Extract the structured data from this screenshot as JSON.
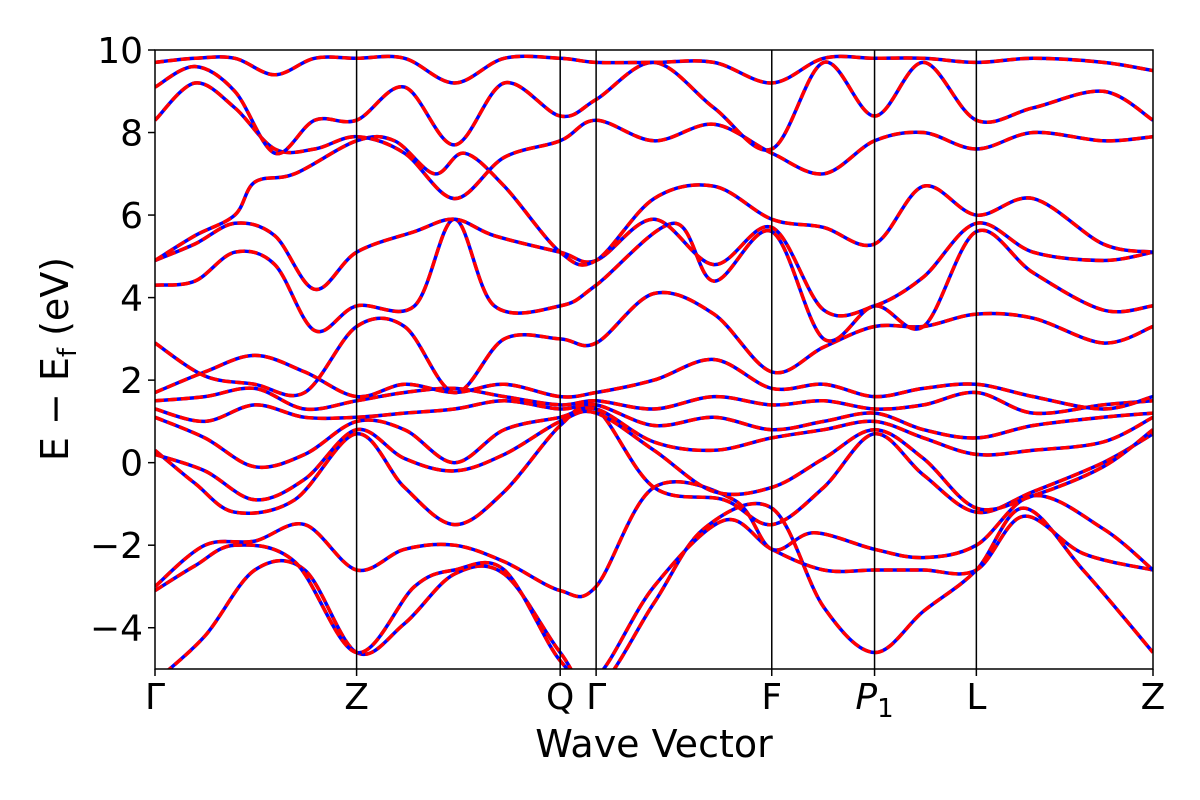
{
  "chart_data": {
    "type": "line",
    "title": "",
    "xlabel": "Wave Vector",
    "ylabel": {
      "main": "E − E",
      "sub": "f",
      "unit": " (eV)"
    },
    "ylim": [
      -5,
      10
    ],
    "yticks": [
      {
        "value": -4,
        "label": "−4"
      },
      {
        "value": -2,
        "label": "−2"
      },
      {
        "value": 0,
        "label": "0"
      },
      {
        "value": 2,
        "label": "2"
      },
      {
        "value": 4,
        "label": "4"
      },
      {
        "value": 6,
        "label": "6"
      },
      {
        "value": 8,
        "label": "8"
      },
      {
        "value": 10,
        "label": "10"
      }
    ],
    "xlim": [
      0,
      1
    ],
    "xticks": [
      {
        "pos": 0.0,
        "label": "Γ",
        "sub": ""
      },
      {
        "pos": 0.202,
        "label": "Z",
        "sub": ""
      },
      {
        "pos": 0.406,
        "label": "Q",
        "sub": ""
      },
      {
        "pos": 0.442,
        "label": "Γ",
        "sub": ""
      },
      {
        "pos": 0.618,
        "label": "F",
        "sub": ""
      },
      {
        "pos": 0.721,
        "label": "P",
        "sub": "1"
      },
      {
        "pos": 0.823,
        "label": "L",
        "sub": ""
      },
      {
        "pos": 1.0,
        "label": "Z",
        "sub": ""
      }
    ],
    "grid": false,
    "legend": "none",
    "series_styles": [
      {
        "color": "#0000ff",
        "style": "solid"
      },
      {
        "color": "#ff0000",
        "style": "dashed"
      }
    ],
    "bands": [
      [
        [
          0,
          -5.3
        ],
        [
          0.05,
          -4.2
        ],
        [
          0.1,
          -2.6
        ],
        [
          0.15,
          -2.6
        ],
        [
          0.202,
          -4.6
        ],
        [
          0.25,
          -3.9
        ],
        [
          0.3,
          -2.7
        ],
        [
          0.35,
          -2.7
        ],
        [
          0.406,
          -4.6
        ],
        [
          0.442,
          -5.5
        ],
        [
          0.5,
          -3.4
        ],
        [
          0.55,
          -1.6
        ],
        [
          0.618,
          -1.1
        ],
        [
          0.67,
          -3.5
        ],
        [
          0.721,
          -4.6
        ],
        [
          0.77,
          -3.6
        ],
        [
          0.823,
          -2.6
        ],
        [
          0.87,
          -1.1
        ],
        [
          0.93,
          -2.6
        ],
        [
          1.0,
          -4.6
        ]
      ],
      [
        [
          0,
          -3.1
        ],
        [
          0.04,
          -2.5
        ],
        [
          0.08,
          -2.0
        ],
        [
          0.14,
          -2.4
        ],
        [
          0.202,
          -4.6
        ],
        [
          0.26,
          -3.0
        ],
        [
          0.3,
          -2.6
        ],
        [
          0.35,
          -2.6
        ],
        [
          0.406,
          -4.8
        ],
        [
          0.442,
          -5.2
        ],
        [
          0.5,
          -3.0
        ],
        [
          0.57,
          -1.4
        ],
        [
          0.618,
          -2.1
        ],
        [
          0.67,
          -2.6
        ],
        [
          0.721,
          -2.6
        ],
        [
          0.77,
          -2.6
        ],
        [
          0.823,
          -2.6
        ],
        [
          0.87,
          -1.3
        ],
        [
          0.93,
          -2.2
        ],
        [
          1.0,
          -2.6
        ]
      ],
      [
        [
          0,
          -3.0
        ],
        [
          0.05,
          -2.0
        ],
        [
          0.1,
          -1.9
        ],
        [
          0.15,
          -1.5
        ],
        [
          0.202,
          -2.6
        ],
        [
          0.25,
          -2.1
        ],
        [
          0.3,
          -2.0
        ],
        [
          0.35,
          -2.4
        ],
        [
          0.406,
          -3.1
        ],
        [
          0.442,
          -3.0
        ],
        [
          0.5,
          -0.6
        ],
        [
          0.58,
          -0.9
        ],
        [
          0.618,
          -2.1
        ],
        [
          0.66,
          -1.7
        ],
        [
          0.721,
          -2.1
        ],
        [
          0.77,
          -2.3
        ],
        [
          0.823,
          -2.0
        ],
        [
          0.88,
          -0.8
        ],
        [
          0.95,
          -1.6
        ],
        [
          1.0,
          -2.6
        ]
      ],
      [
        [
          0,
          0.3
        ],
        [
          0.04,
          -0.5
        ],
        [
          0.08,
          -1.2
        ],
        [
          0.14,
          -0.9
        ],
        [
          0.202,
          0.7
        ],
        [
          0.25,
          -0.6
        ],
        [
          0.3,
          -1.5
        ],
        [
          0.35,
          -0.7
        ],
        [
          0.406,
          0.9
        ],
        [
          0.442,
          1.3
        ],
        [
          0.5,
          -0.6
        ],
        [
          0.57,
          -0.9
        ],
        [
          0.618,
          -1.5
        ],
        [
          0.67,
          -0.6
        ],
        [
          0.721,
          0.7
        ],
        [
          0.77,
          -0.3
        ],
        [
          0.823,
          -1.2
        ],
        [
          0.88,
          -0.7
        ],
        [
          0.95,
          0.0
        ],
        [
          1.0,
          0.7
        ]
      ],
      [
        [
          0,
          0.2
        ],
        [
          0.05,
          -0.2
        ],
        [
          0.1,
          -0.9
        ],
        [
          0.15,
          -0.4
        ],
        [
          0.202,
          0.8
        ],
        [
          0.25,
          0.1
        ],
        [
          0.3,
          -0.2
        ],
        [
          0.35,
          0.2
        ],
        [
          0.406,
          1.0
        ],
        [
          0.442,
          1.2
        ],
        [
          0.5,
          0.3
        ],
        [
          0.56,
          -0.7
        ],
        [
          0.618,
          -0.6
        ],
        [
          0.67,
          0.1
        ],
        [
          0.721,
          0.8
        ],
        [
          0.77,
          0.1
        ],
        [
          0.823,
          -1.1
        ],
        [
          0.88,
          -0.8
        ],
        [
          0.95,
          -0.1
        ],
        [
          1.0,
          0.8
        ]
      ],
      [
        [
          0,
          1.1
        ],
        [
          0.05,
          0.6
        ],
        [
          0.1,
          -0.1
        ],
        [
          0.15,
          0.2
        ],
        [
          0.202,
          1.0
        ],
        [
          0.25,
          0.8
        ],
        [
          0.3,
          0.0
        ],
        [
          0.35,
          0.8
        ],
        [
          0.406,
          1.1
        ],
        [
          0.442,
          1.3
        ],
        [
          0.5,
          0.5
        ],
        [
          0.56,
          0.3
        ],
        [
          0.618,
          0.6
        ],
        [
          0.67,
          0.8
        ],
        [
          0.721,
          1.0
        ],
        [
          0.77,
          0.6
        ],
        [
          0.823,
          0.2
        ],
        [
          0.88,
          0.3
        ],
        [
          0.95,
          0.5
        ],
        [
          1.0,
          1.1
        ]
      ],
      [
        [
          0,
          1.3
        ],
        [
          0.05,
          1.0
        ],
        [
          0.1,
          1.4
        ],
        [
          0.15,
          1.1
        ],
        [
          0.202,
          1.1
        ],
        [
          0.25,
          1.2
        ],
        [
          0.3,
          1.3
        ],
        [
          0.35,
          1.5
        ],
        [
          0.406,
          1.3
        ],
        [
          0.442,
          1.4
        ],
        [
          0.5,
          0.9
        ],
        [
          0.56,
          1.1
        ],
        [
          0.618,
          0.8
        ],
        [
          0.67,
          1.0
        ],
        [
          0.721,
          1.2
        ],
        [
          0.77,
          0.8
        ],
        [
          0.823,
          0.6
        ],
        [
          0.88,
          0.9
        ],
        [
          0.95,
          1.1
        ],
        [
          1.0,
          1.2
        ]
      ],
      [
        [
          0,
          1.5
        ],
        [
          0.05,
          1.6
        ],
        [
          0.1,
          1.8
        ],
        [
          0.15,
          1.3
        ],
        [
          0.202,
          1.5
        ],
        [
          0.25,
          1.7
        ],
        [
          0.3,
          1.8
        ],
        [
          0.35,
          1.6
        ],
        [
          0.406,
          1.4
        ],
        [
          0.442,
          1.5
        ],
        [
          0.5,
          1.3
        ],
        [
          0.56,
          1.6
        ],
        [
          0.618,
          1.4
        ],
        [
          0.67,
          1.5
        ],
        [
          0.721,
          1.3
        ],
        [
          0.77,
          1.4
        ],
        [
          0.823,
          1.7
        ],
        [
          0.88,
          1.2
        ],
        [
          0.95,
          1.4
        ],
        [
          1.0,
          1.5
        ]
      ],
      [
        [
          0,
          1.7
        ],
        [
          0.05,
          2.2
        ],
        [
          0.1,
          2.6
        ],
        [
          0.15,
          2.2
        ],
        [
          0.202,
          1.6
        ],
        [
          0.25,
          1.9
        ],
        [
          0.3,
          1.7
        ],
        [
          0.35,
          1.9
        ],
        [
          0.406,
          1.6
        ],
        [
          0.442,
          1.7
        ],
        [
          0.5,
          2.0
        ],
        [
          0.56,
          2.5
        ],
        [
          0.618,
          1.8
        ],
        [
          0.67,
          1.9
        ],
        [
          0.721,
          1.6
        ],
        [
          0.77,
          1.8
        ],
        [
          0.823,
          1.9
        ],
        [
          0.88,
          1.6
        ],
        [
          0.95,
          1.3
        ],
        [
          1.0,
          1.6
        ]
      ],
      [
        [
          0,
          2.9
        ],
        [
          0.05,
          2.1
        ],
        [
          0.1,
          1.9
        ],
        [
          0.15,
          1.7
        ],
        [
          0.202,
          3.3
        ],
        [
          0.25,
          3.3
        ],
        [
          0.3,
          1.7
        ],
        [
          0.35,
          3.0
        ],
        [
          0.406,
          3.0
        ],
        [
          0.442,
          2.9
        ],
        [
          0.5,
          4.1
        ],
        [
          0.56,
          3.6
        ],
        [
          0.618,
          2.2
        ],
        [
          0.67,
          2.8
        ],
        [
          0.721,
          3.3
        ],
        [
          0.77,
          3.3
        ],
        [
          0.823,
          3.6
        ],
        [
          0.88,
          3.5
        ],
        [
          0.95,
          2.9
        ],
        [
          1.0,
          3.3
        ]
      ],
      [
        [
          0,
          4.3
        ],
        [
          0.04,
          4.4
        ],
        [
          0.08,
          5.1
        ],
        [
          0.12,
          4.8
        ],
        [
          0.16,
          3.2
        ],
        [
          0.202,
          3.8
        ],
        [
          0.26,
          3.8
        ],
        [
          0.3,
          5.9
        ],
        [
          0.34,
          3.8
        ],
        [
          0.406,
          3.8
        ],
        [
          0.442,
          4.3
        ],
        [
          0.52,
          5.8
        ],
        [
          0.56,
          4.4
        ],
        [
          0.618,
          5.6
        ],
        [
          0.67,
          3.0
        ],
        [
          0.721,
          3.8
        ],
        [
          0.77,
          3.3
        ],
        [
          0.823,
          5.6
        ],
        [
          0.88,
          4.6
        ],
        [
          0.95,
          3.7
        ],
        [
          1.0,
          3.8
        ]
      ],
      [
        [
          0,
          4.9
        ],
        [
          0.04,
          5.3
        ],
        [
          0.08,
          5.8
        ],
        [
          0.12,
          5.5
        ],
        [
          0.16,
          4.2
        ],
        [
          0.202,
          5.1
        ],
        [
          0.26,
          5.6
        ],
        [
          0.3,
          5.9
        ],
        [
          0.34,
          5.5
        ],
        [
          0.406,
          5.1
        ],
        [
          0.442,
          4.9
        ],
        [
          0.5,
          5.9
        ],
        [
          0.56,
          4.8
        ],
        [
          0.618,
          5.7
        ],
        [
          0.67,
          3.7
        ],
        [
          0.721,
          3.8
        ],
        [
          0.77,
          4.5
        ],
        [
          0.823,
          5.8
        ],
        [
          0.88,
          5.1
        ],
        [
          0.95,
          4.9
        ],
        [
          1.0,
          5.1
        ]
      ],
      [
        [
          0,
          4.9
        ],
        [
          0.04,
          5.5
        ],
        [
          0.08,
          6.0
        ],
        [
          0.1,
          6.8
        ],
        [
          0.14,
          7.0
        ],
        [
          0.202,
          7.8
        ],
        [
          0.24,
          7.8
        ],
        [
          0.28,
          7.0
        ],
        [
          0.31,
          7.5
        ],
        [
          0.35,
          6.7
        ],
        [
          0.406,
          5.1
        ],
        [
          0.442,
          4.9
        ],
        [
          0.5,
          6.4
        ],
        [
          0.56,
          6.7
        ],
        [
          0.618,
          5.9
        ],
        [
          0.67,
          5.7
        ],
        [
          0.721,
          5.3
        ],
        [
          0.77,
          6.7
        ],
        [
          0.823,
          6.0
        ],
        [
          0.88,
          6.4
        ],
        [
          0.95,
          5.3
        ],
        [
          1.0,
          5.1
        ]
      ],
      [
        [
          0,
          8.3
        ],
        [
          0.04,
          9.2
        ],
        [
          0.08,
          8.6
        ],
        [
          0.12,
          7.6
        ],
        [
          0.16,
          7.6
        ],
        [
          0.202,
          7.9
        ],
        [
          0.25,
          7.5
        ],
        [
          0.3,
          6.4
        ],
        [
          0.35,
          7.4
        ],
        [
          0.406,
          7.8
        ],
        [
          0.442,
          8.3
        ],
        [
          0.5,
          7.8
        ],
        [
          0.56,
          8.2
        ],
        [
          0.618,
          7.5
        ],
        [
          0.67,
          7.0
        ],
        [
          0.721,
          7.8
        ],
        [
          0.77,
          8.0
        ],
        [
          0.823,
          7.6
        ],
        [
          0.88,
          8.0
        ],
        [
          0.95,
          7.8
        ],
        [
          1.0,
          7.9
        ]
      ],
      [
        [
          0,
          9.1
        ],
        [
          0.04,
          9.6
        ],
        [
          0.08,
          9.0
        ],
        [
          0.12,
          7.5
        ],
        [
          0.16,
          8.3
        ],
        [
          0.202,
          8.3
        ],
        [
          0.25,
          9.1
        ],
        [
          0.3,
          7.7
        ],
        [
          0.35,
          9.2
        ],
        [
          0.406,
          8.4
        ],
        [
          0.442,
          8.8
        ],
        [
          0.5,
          9.7
        ],
        [
          0.56,
          8.6
        ],
        [
          0.618,
          7.6
        ],
        [
          0.67,
          9.7
        ],
        [
          0.721,
          8.4
        ],
        [
          0.77,
          9.7
        ],
        [
          0.823,
          8.3
        ],
        [
          0.88,
          8.6
        ],
        [
          0.95,
          9.0
        ],
        [
          1.0,
          8.3
        ]
      ],
      [
        [
          0,
          9.7
        ],
        [
          0.04,
          9.8
        ],
        [
          0.08,
          9.8
        ],
        [
          0.12,
          9.4
        ],
        [
          0.16,
          9.8
        ],
        [
          0.202,
          9.8
        ],
        [
          0.25,
          9.8
        ],
        [
          0.3,
          9.2
        ],
        [
          0.35,
          9.8
        ],
        [
          0.406,
          9.8
        ],
        [
          0.442,
          9.7
        ],
        [
          0.5,
          9.7
        ],
        [
          0.56,
          9.7
        ],
        [
          0.618,
          9.2
        ],
        [
          0.67,
          9.8
        ],
        [
          0.721,
          9.8
        ],
        [
          0.77,
          9.8
        ],
        [
          0.823,
          9.7
        ],
        [
          0.88,
          9.8
        ],
        [
          0.95,
          9.7
        ],
        [
          1.0,
          9.5
        ]
      ]
    ]
  }
}
